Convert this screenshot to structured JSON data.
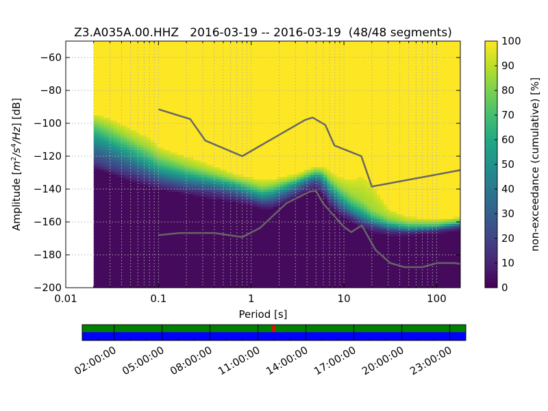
{
  "chart_data": [
    {
      "type": "heatmap",
      "title": "Z3.A035A.00.HHZ   2016-03-19 -- 2016-03-19  (48/48 segments)",
      "xlabel": "Period [s]",
      "ylabel": "Amplitude [$m^2/s^4/Hz$] [dB]",
      "xscale": "log",
      "xlim": [
        0.01,
        180
      ],
      "ylim": [
        -200,
        -50
      ],
      "x_ticks": [
        0.01,
        0.1,
        1,
        10,
        100
      ],
      "x_tick_labels": [
        "0.01",
        "0.1",
        "1",
        "10",
        "100"
      ],
      "y_ticks": [
        -200,
        -180,
        -160,
        -140,
        -120,
        -100,
        -80,
        -60
      ],
      "y_tick_labels": [
        "−200",
        "−180",
        "−160",
        "−140",
        "−120",
        "−100",
        "−80",
        "−60"
      ],
      "grid": true,
      "colormap": "viridis",
      "colorbar": {
        "label": "non-exceedance (cumulative) [%]",
        "range": [
          0,
          100
        ],
        "ticks": [
          0,
          10,
          20,
          30,
          40,
          50,
          60,
          70,
          80,
          90,
          100
        ],
        "tick_labels": [
          "0",
          "10",
          "20",
          "30",
          "40",
          "50",
          "60",
          "70",
          "80",
          "90",
          "100"
        ]
      },
      "data_period_range": [
        0.02,
        180
      ],
      "percentile_bands": [
        {
          "p": 5,
          "db": [
            [
              0.02,
              -127
            ],
            [
              0.03,
              -130
            ],
            [
              0.05,
              -135
            ],
            [
              0.08,
              -138
            ],
            [
              0.1,
              -140
            ],
            [
              0.2,
              -143
            ],
            [
              0.4,
              -146
            ],
            [
              0.7,
              -148
            ],
            [
              1,
              -150
            ],
            [
              1.3,
              -152
            ],
            [
              1.7,
              -152
            ],
            [
              2.3,
              -148
            ],
            [
              3,
              -145
            ],
            [
              4,
              -142
            ],
            [
              5,
              -140
            ],
            [
              6,
              -144
            ],
            [
              7,
              -150
            ],
            [
              9,
              -156
            ],
            [
              12,
              -160
            ],
            [
              16,
              -164
            ],
            [
              20,
              -166
            ],
            [
              30,
              -168
            ],
            [
              50,
              -168
            ],
            [
              100,
              -167
            ],
            [
              180,
              -165
            ]
          ]
        },
        {
          "p": 15,
          "db": [
            [
              0.02,
              -124
            ],
            [
              0.03,
              -128
            ],
            [
              0.05,
              -131
            ],
            [
              0.08,
              -135
            ],
            [
              0.1,
              -137
            ],
            [
              0.2,
              -140
            ],
            [
              0.4,
              -142
            ],
            [
              0.7,
              -145
            ],
            [
              1,
              -147
            ],
            [
              1.3,
              -149
            ],
            [
              1.7,
              -149
            ],
            [
              2.3,
              -146
            ],
            [
              3,
              -143
            ],
            [
              4,
              -139
            ],
            [
              5,
              -137
            ],
            [
              6,
              -141
            ],
            [
              7,
              -147
            ],
            [
              9,
              -153
            ],
            [
              12,
              -157
            ],
            [
              16,
              -161
            ],
            [
              20,
              -163
            ],
            [
              30,
              -165
            ],
            [
              50,
              -166
            ],
            [
              100,
              -165
            ],
            [
              180,
              -163
            ]
          ]
        },
        {
          "p": 30,
          "db": [
            [
              0.02,
              -118
            ],
            [
              0.03,
              -121
            ],
            [
              0.05,
              -126
            ],
            [
              0.08,
              -130
            ],
            [
              0.1,
              -133
            ],
            [
              0.2,
              -137
            ],
            [
              0.4,
              -139
            ],
            [
              0.7,
              -142
            ],
            [
              1,
              -145
            ],
            [
              1.3,
              -147
            ],
            [
              1.7,
              -146
            ],
            [
              2.3,
              -143
            ],
            [
              3,
              -140
            ],
            [
              4,
              -136
            ],
            [
              5,
              -134
            ],
            [
              6,
              -137
            ],
            [
              7,
              -143
            ],
            [
              9,
              -150
            ],
            [
              12,
              -155
            ],
            [
              16,
              -159
            ],
            [
              20,
              -161
            ],
            [
              30,
              -164
            ],
            [
              50,
              -165
            ],
            [
              100,
              -164
            ],
            [
              180,
              -162
            ]
          ]
        },
        {
          "p": 50,
          "db": [
            [
              0.02,
              -110
            ],
            [
              0.03,
              -114
            ],
            [
              0.05,
              -120
            ],
            [
              0.08,
              -126
            ],
            [
              0.1,
              -129
            ],
            [
              0.2,
              -133
            ],
            [
              0.4,
              -136
            ],
            [
              0.7,
              -139
            ],
            [
              1,
              -142
            ],
            [
              1.3,
              -144
            ],
            [
              1.7,
              -143
            ],
            [
              2.3,
              -140
            ],
            [
              3,
              -137
            ],
            [
              4,
              -134
            ],
            [
              5,
              -132
            ],
            [
              6,
              -134
            ],
            [
              7,
              -140
            ],
            [
              9,
              -146
            ],
            [
              12,
              -152
            ],
            [
              16,
              -156
            ],
            [
              20,
              -159
            ],
            [
              30,
              -162
            ],
            [
              50,
              -164
            ],
            [
              100,
              -163
            ],
            [
              180,
              -161
            ]
          ]
        },
        {
          "p": 70,
          "db": [
            [
              0.02,
              -103
            ],
            [
              0.03,
              -108
            ],
            [
              0.05,
              -114
            ],
            [
              0.08,
              -120
            ],
            [
              0.1,
              -124
            ],
            [
              0.2,
              -129
            ],
            [
              0.4,
              -133
            ],
            [
              0.7,
              -136
            ],
            [
              1,
              -139
            ],
            [
              1.3,
              -141
            ],
            [
              1.7,
              -140
            ],
            [
              2.3,
              -137
            ],
            [
              3,
              -135
            ],
            [
              4,
              -132
            ],
            [
              5,
              -130
            ],
            [
              6,
              -131
            ],
            [
              7,
              -136
            ],
            [
              9,
              -142
            ],
            [
              12,
              -148
            ],
            [
              16,
              -152
            ],
            [
              20,
              -156
            ],
            [
              30,
              -160
            ],
            [
              50,
              -162
            ],
            [
              100,
              -162
            ],
            [
              180,
              -160
            ]
          ]
        },
        {
          "p": 85,
          "db": [
            [
              0.02,
              -98
            ],
            [
              0.03,
              -102
            ],
            [
              0.05,
              -109
            ],
            [
              0.08,
              -115
            ],
            [
              0.1,
              -119
            ],
            [
              0.2,
              -125
            ],
            [
              0.4,
              -130
            ],
            [
              0.7,
              -134
            ],
            [
              1,
              -136
            ],
            [
              1.3,
              -138
            ],
            [
              1.7,
              -137
            ],
            [
              2.3,
              -135
            ],
            [
              3,
              -133
            ],
            [
              4,
              -130
            ],
            [
              5,
              -128
            ],
            [
              6,
              -129
            ],
            [
              7,
              -133
            ],
            [
              9,
              -138
            ],
            [
              12,
              -143
            ],
            [
              16,
              -147
            ],
            [
              20,
              -152
            ],
            [
              30,
              -157
            ],
            [
              50,
              -160
            ],
            [
              100,
              -160
            ],
            [
              180,
              -158
            ]
          ]
        },
        {
          "p": 95,
          "db": [
            [
              0.02,
              -94
            ],
            [
              0.03,
              -97
            ],
            [
              0.05,
              -103
            ],
            [
              0.08,
              -109
            ],
            [
              0.1,
              -114
            ],
            [
              0.2,
              -120
            ],
            [
              0.4,
              -126
            ],
            [
              0.7,
              -131
            ],
            [
              1,
              -133
            ],
            [
              1.3,
              -134
            ],
            [
              1.7,
              -134
            ],
            [
              2.3,
              -132
            ],
            [
              3,
              -131
            ],
            [
              4,
              -128
            ],
            [
              5,
              -126
            ],
            [
              6,
              -126
            ],
            [
              7,
              -129
            ],
            [
              9,
              -133
            ],
            [
              12,
              -134
            ],
            [
              16,
              -132
            ],
            [
              20,
              -137
            ],
            [
              30,
              -152
            ],
            [
              50,
              -157
            ],
            [
              100,
              -158
            ],
            [
              180,
              -157
            ]
          ]
        }
      ],
      "noise_models": [
        {
          "points": [
            [
              0.1,
              -91.5
            ],
            [
              0.22,
              -97.4
            ],
            [
              0.32,
              -110.5
            ],
            [
              0.8,
              -120
            ],
            [
              3.8,
              -98
            ],
            [
              4.6,
              -96.5
            ],
            [
              6.3,
              -101
            ],
            [
              7.9,
              -113.5
            ],
            [
              15.4,
              -120
            ],
            [
              20,
              -138.5
            ],
            [
              180,
              -128.5
            ]
          ]
        },
        {
          "points": [
            [
              0.1,
              -168
            ],
            [
              0.17,
              -166.7
            ],
            [
              0.4,
              -166.7
            ],
            [
              0.8,
              -169.2
            ],
            [
              1.24,
              -163.7
            ],
            [
              2.4,
              -148.6
            ],
            [
              4.3,
              -141.5
            ],
            [
              5,
              -141.1
            ],
            [
              6,
              -149
            ],
            [
              10,
              -163
            ],
            [
              12,
              -166.2
            ],
            [
              15.6,
              -162.1
            ],
            [
              21.9,
              -177
            ],
            [
              31.6,
              -185
            ],
            [
              45,
              -187.5
            ],
            [
              70,
              -187.5
            ],
            [
              101,
              -185
            ],
            [
              154,
              -185
            ],
            [
              180,
              -185.5
            ]
          ]
        }
      ],
      "colors": {
        "noise_model": "#666666",
        "grid": "#b0b0b0"
      }
    },
    {
      "type": "timeline",
      "x_tick_labels": [
        "02:00:00",
        "05:00:00",
        "08:00:00",
        "11:00:00",
        "14:00:00",
        "17:00:00",
        "20:00:00",
        "23:00:00"
      ],
      "segments_used": 48,
      "segments_total": 48,
      "marker_fraction": 0.499,
      "colors": {
        "top": "#008000",
        "bottom": "#0000ff",
        "marker": "#ff0000"
      }
    }
  ]
}
